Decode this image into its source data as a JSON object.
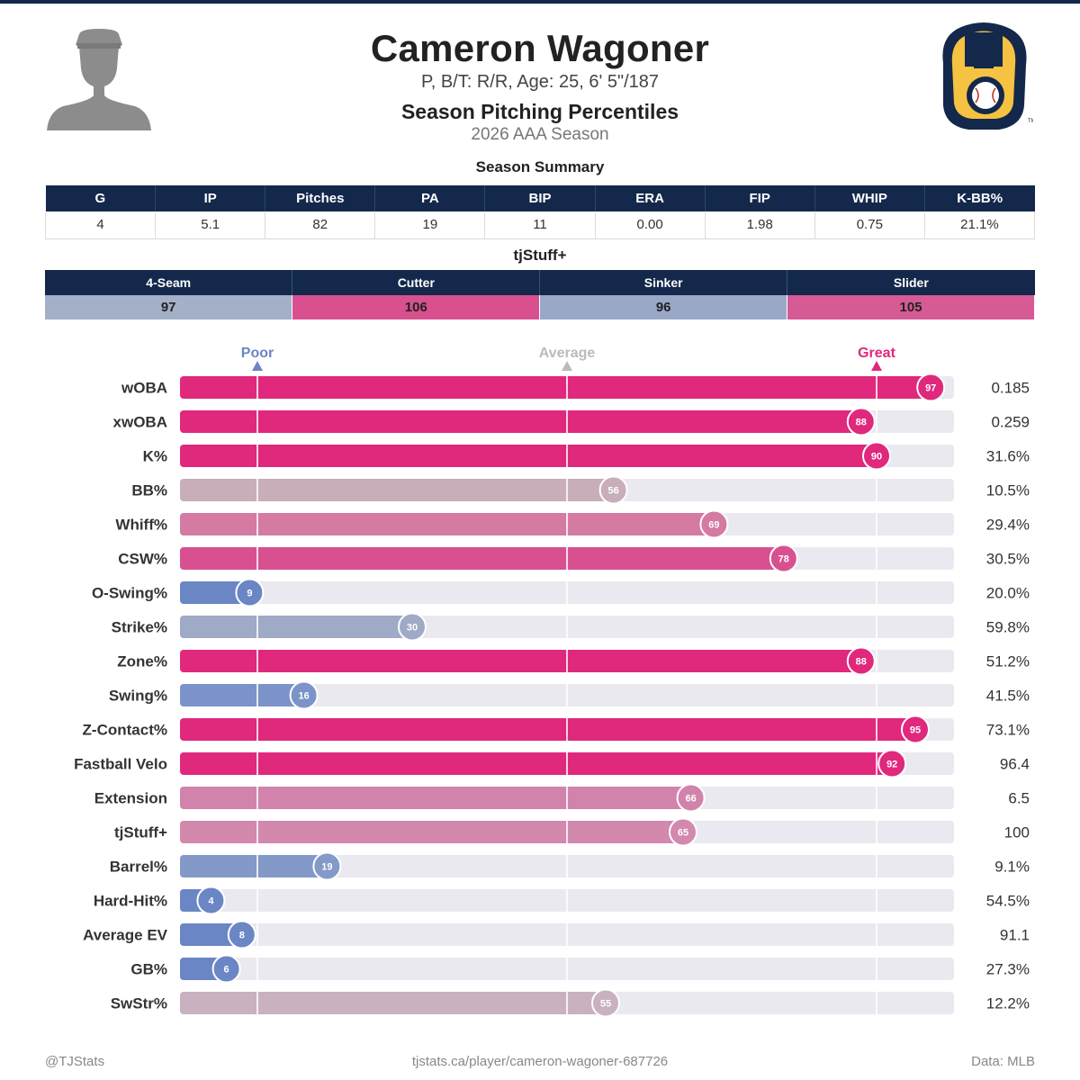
{
  "header": {
    "name": "Cameron Wagoner",
    "bio": "P, B/T: R/R, Age: 25, 6' 5\"/187",
    "title": "Season Pitching Percentiles",
    "subtitle": "2026 AAA Season"
  },
  "summary": {
    "title": "Season Summary",
    "columns": [
      "G",
      "IP",
      "Pitches",
      "PA",
      "BIP",
      "ERA",
      "FIP",
      "WHIP",
      "K-BB%"
    ],
    "values": [
      "4",
      "5.1",
      "82",
      "19",
      "11",
      "0.00",
      "1.98",
      "0.75",
      "21.1%"
    ]
  },
  "tjstuff": {
    "title": "tjStuff+",
    "pitches": [
      {
        "name": "4-Seam",
        "value": "97",
        "color": "#a4afc8"
      },
      {
        "name": "Cutter",
        "value": "106",
        "color": "#d8508f"
      },
      {
        "name": "Sinker",
        "value": "96",
        "color": "#9aa8c8"
      },
      {
        "name": "Slider",
        "value": "105",
        "color": "#d65a95"
      }
    ]
  },
  "chart_data": {
    "type": "bar",
    "orientation": "horizontal",
    "xlim": [
      0,
      100
    ],
    "markers": [
      {
        "label": "Poor",
        "value": 10,
        "color": "#6b86c4"
      },
      {
        "label": "Average",
        "value": 50,
        "color": "#bbbbbb"
      },
      {
        "label": "Great",
        "value": 90,
        "color": "#e0287d"
      }
    ],
    "rows": [
      {
        "label": "wOBA",
        "percentile": 97,
        "stat": "0.185",
        "color": "#e0287d"
      },
      {
        "label": "xwOBA",
        "percentile": 88,
        "stat": "0.259",
        "color": "#e0287d"
      },
      {
        "label": "K%",
        "percentile": 90,
        "stat": "31.6%",
        "color": "#e0287d"
      },
      {
        "label": "BB%",
        "percentile": 56,
        "stat": "10.5%",
        "color": "#c7aeba"
      },
      {
        "label": "Whiff%",
        "percentile": 69,
        "stat": "29.4%",
        "color": "#d47aa3"
      },
      {
        "label": "CSW%",
        "percentile": 78,
        "stat": "30.5%",
        "color": "#d8508f"
      },
      {
        "label": "O-Swing%",
        "percentile": 9,
        "stat": "20.0%",
        "color": "#6b86c4"
      },
      {
        "label": "Strike%",
        "percentile": 30,
        "stat": "59.8%",
        "color": "#9eaac6"
      },
      {
        "label": "Zone%",
        "percentile": 88,
        "stat": "51.2%",
        "color": "#e0287d"
      },
      {
        "label": "Swing%",
        "percentile": 16,
        "stat": "41.5%",
        "color": "#7b93c8"
      },
      {
        "label": "Z-Contact%",
        "percentile": 95,
        "stat": "73.1%",
        "color": "#e0287d"
      },
      {
        "label": "Fastball Velo",
        "percentile": 92,
        "stat": "96.4",
        "color": "#e0287d"
      },
      {
        "label": "Extension",
        "percentile": 66,
        "stat": "6.5",
        "color": "#d283ab"
      },
      {
        "label": "tjStuff+",
        "percentile": 65,
        "stat": "100",
        "color": "#d388ad"
      },
      {
        "label": "Barrel%",
        "percentile": 19,
        "stat": "9.1%",
        "color": "#8399c8"
      },
      {
        "label": "Hard-Hit%",
        "percentile": 4,
        "stat": "54.5%",
        "color": "#6b86c4"
      },
      {
        "label": "Average EV",
        "percentile": 8,
        "stat": "91.1",
        "color": "#6b86c4"
      },
      {
        "label": "GB%",
        "percentile": 6,
        "stat": "27.3%",
        "color": "#6b86c4"
      },
      {
        "label": "SwStr%",
        "percentile": 55,
        "stat": "12.2%",
        "color": "#c9b1bf"
      }
    ]
  },
  "footer": {
    "left": "@TJStats",
    "center": "tjstats.ca/player/cameron-wagoner-687726",
    "right": "Data: MLB"
  },
  "icons": {
    "headshot": "player-silhouette-icon",
    "logo": "brewers-ball-in-glove-logo"
  }
}
